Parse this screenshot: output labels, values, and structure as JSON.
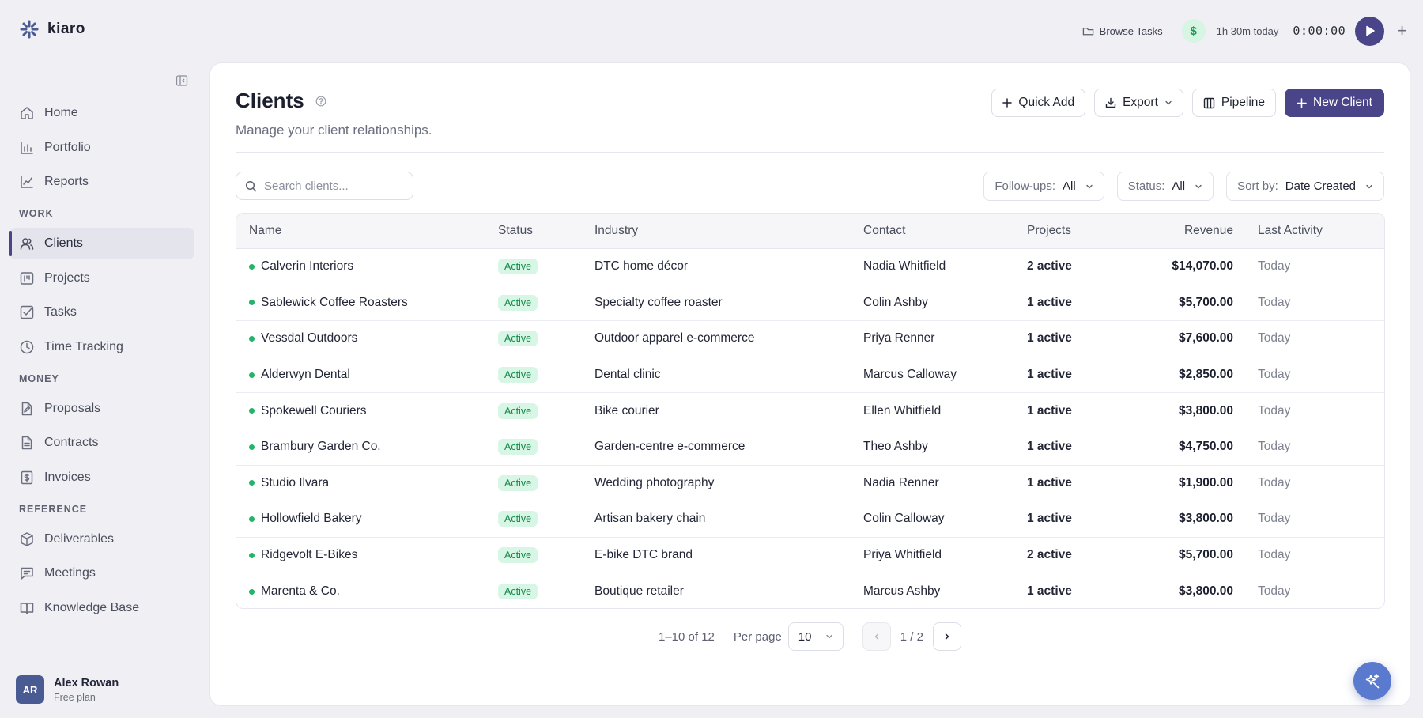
{
  "brand": {
    "name": "kiaro"
  },
  "topbar": {
    "browse_label": "Browse Tasks",
    "currency_symbol": "$",
    "time_today": "1h 30m today",
    "timer": "0:00:00"
  },
  "sidebar": {
    "items_top": [
      {
        "label": "Home",
        "icon": "home-icon"
      },
      {
        "label": "Portfolio",
        "icon": "bar-chart-icon"
      },
      {
        "label": "Reports",
        "icon": "line-chart-icon"
      }
    ],
    "section_work": "WORK",
    "items_work": [
      {
        "label": "Clients",
        "icon": "users-icon",
        "active": true
      },
      {
        "label": "Projects",
        "icon": "kanban-icon"
      },
      {
        "label": "Tasks",
        "icon": "checkbox-icon"
      },
      {
        "label": "Time Tracking",
        "icon": "clock-icon"
      }
    ],
    "section_money": "MONEY",
    "items_money": [
      {
        "label": "Proposals",
        "icon": "file-edit-icon"
      },
      {
        "label": "Contracts",
        "icon": "file-text-icon"
      },
      {
        "label": "Invoices",
        "icon": "receipt-icon"
      }
    ],
    "section_reference": "REFERENCE",
    "items_reference": [
      {
        "label": "Deliverables",
        "icon": "package-icon"
      },
      {
        "label": "Meetings",
        "icon": "message-icon"
      },
      {
        "label": "Knowledge Base",
        "icon": "book-icon"
      }
    ],
    "user": {
      "initials": "AR",
      "name": "Alex Rowan",
      "plan": "Free plan"
    }
  },
  "header": {
    "title": "Clients",
    "subtitle": "Manage your client relationships.",
    "quick_add": "Quick Add",
    "export": "Export",
    "pipeline": "Pipeline",
    "new_client": "New Client"
  },
  "search": {
    "placeholder": "Search clients...",
    "value": ""
  },
  "filters": {
    "followups_label": "Follow-ups:",
    "followups_value": "All",
    "status_label": "Status:",
    "status_value": "All",
    "sort_label": "Sort by:",
    "sort_value": "Date Created"
  },
  "table": {
    "headers": [
      "Name",
      "Status",
      "Industry",
      "Contact",
      "Projects",
      "Revenue",
      "Last Activity"
    ],
    "rows": [
      {
        "name": "Calverin Interiors",
        "status": "Active",
        "industry": "DTC home décor",
        "contact": "Nadia Whitfield",
        "projects": "2 active",
        "revenue": "$14,070.00",
        "last": "Today"
      },
      {
        "name": "Sablewick Coffee Roasters",
        "status": "Active",
        "industry": "Specialty coffee roaster",
        "contact": "Colin Ashby",
        "projects": "1 active",
        "revenue": "$5,700.00",
        "last": "Today"
      },
      {
        "name": "Vessdal Outdoors",
        "status": "Active",
        "industry": "Outdoor apparel e-commerce",
        "contact": "Priya Renner",
        "projects": "1 active",
        "revenue": "$7,600.00",
        "last": "Today"
      },
      {
        "name": "Alderwyn Dental",
        "status": "Active",
        "industry": "Dental clinic",
        "contact": "Marcus Calloway",
        "projects": "1 active",
        "revenue": "$2,850.00",
        "last": "Today"
      },
      {
        "name": "Spokewell Couriers",
        "status": "Active",
        "industry": "Bike courier",
        "contact": "Ellen Whitfield",
        "projects": "1 active",
        "revenue": "$3,800.00",
        "last": "Today"
      },
      {
        "name": "Brambury Garden Co.",
        "status": "Active",
        "industry": "Garden-centre e-commerce",
        "contact": "Theo Ashby",
        "projects": "1 active",
        "revenue": "$4,750.00",
        "last": "Today"
      },
      {
        "name": "Studio Ilvara",
        "status": "Active",
        "industry": "Wedding photography",
        "contact": "Nadia Renner",
        "projects": "1 active",
        "revenue": "$1,900.00",
        "last": "Today"
      },
      {
        "name": "Hollowfield Bakery",
        "status": "Active",
        "industry": "Artisan bakery chain",
        "contact": "Colin Calloway",
        "projects": "1 active",
        "revenue": "$3,800.00",
        "last": "Today"
      },
      {
        "name": "Ridgevolt E-Bikes",
        "status": "Active",
        "industry": "E-bike DTC brand",
        "contact": "Priya Whitfield",
        "projects": "2 active",
        "revenue": "$5,700.00",
        "last": "Today"
      },
      {
        "name": "Marenta & Co.",
        "status": "Active",
        "industry": "Boutique retailer",
        "contact": "Marcus Ashby",
        "projects": "1 active",
        "revenue": "$3,800.00",
        "last": "Today"
      }
    ]
  },
  "pagination": {
    "range": "1–10 of 12",
    "per_page_label": "Per page",
    "per_page_value": "10",
    "page_info": "1 / 2"
  },
  "colors": {
    "accent": "#4a4589",
    "status_active_bg": "#d8f6e5",
    "status_active_text": "#14894a",
    "background": "#efeff4"
  }
}
